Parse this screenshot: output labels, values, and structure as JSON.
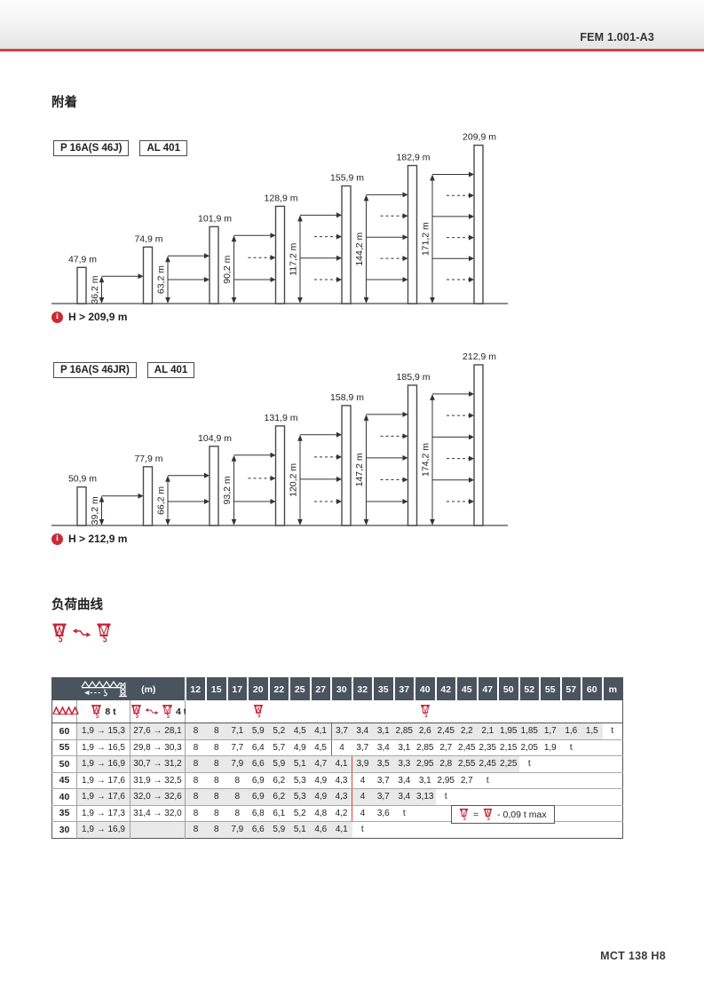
{
  "page": {
    "banner_text": "FEM 1.001-A3",
    "footer_text": "MCT 138 H8",
    "anchorage_title": "附着",
    "load_curve_title": "负荷曲线",
    "colors": {
      "accent_red": "#cd4248",
      "icon_red": "#c32033",
      "table_header_bg": "#4a545e",
      "row_shade_gray": "#e9e9e9",
      "red_separator": "#cf4540"
    }
  },
  "diagrams": [
    {
      "model_label": "P 16A(S 46J)",
      "mast_label": "AL 401",
      "info": "H > 209,9 m",
      "masts": [
        {
          "height": 47.9,
          "label": "47,9 m"
        },
        {
          "height": 74.9,
          "label": "74,9 m",
          "tie": 36.2,
          "tie_label": "36,2 m",
          "arrows": "S"
        },
        {
          "height": 101.9,
          "label": "101,9 m",
          "tie": 63.2,
          "tie_label": "63,2 m",
          "arrows": "SS"
        },
        {
          "height": 128.9,
          "label": "128,9 m",
          "tie": 90.2,
          "tie_label": "90,2 m",
          "arrows": "SDS"
        },
        {
          "height": 155.9,
          "label": "155,9 m",
          "tie": 117.2,
          "tie_label": "117,2 m",
          "arrows": "SDSD"
        },
        {
          "height": 182.9,
          "label": "182,9 m",
          "tie": 144.2,
          "tie_label": "144,2 m",
          "arrows": "SDSDS"
        },
        {
          "height": 209.9,
          "label": "209,9 m",
          "tie": 171.2,
          "tie_label": "171,2 m",
          "arrows": "SDSDSD"
        }
      ]
    },
    {
      "model_label": "P 16A(S 46JR)",
      "mast_label": "AL 401",
      "info": "H > 212,9 m",
      "masts": [
        {
          "height": 50.9,
          "label": "50,9 m"
        },
        {
          "height": 77.9,
          "label": "77,9 m",
          "tie": 39.2,
          "tie_label": "39,2 m",
          "arrows": "S"
        },
        {
          "height": 104.9,
          "label": "104,9 m",
          "tie": 66.2,
          "tie_label": "66,2 m",
          "arrows": "SS"
        },
        {
          "height": 131.9,
          "label": "131,9 m",
          "tie": 93.2,
          "tie_label": "93,2 m",
          "arrows": "SDS"
        },
        {
          "height": 158.9,
          "label": "158,9 m",
          "tie": 120.2,
          "tie_label": "120,2 m",
          "arrows": "SDSD"
        },
        {
          "height": 185.9,
          "label": "185,9 m",
          "tie": 147.2,
          "tie_label": "147,2 m",
          "arrows": "SDSDS"
        },
        {
          "height": 212.9,
          "label": "212,9 m",
          "tie": 174.2,
          "tie_label": "174,2 m",
          "arrows": "SDSDSD"
        }
      ]
    }
  ],
  "load_table": {
    "jib_unit": "(m)",
    "radius_header": [
      "12",
      "15",
      "17",
      "20",
      "22",
      "25",
      "27",
      "30",
      "32",
      "35",
      "37",
      "40",
      "42",
      "45",
      "47",
      "50",
      "52",
      "55",
      "57",
      "60"
    ],
    "unit_header": "m",
    "hook8_label": "8 t",
    "hook4_label": "4 t",
    "unit_t": "t",
    "note_eq": "=",
    "note_text": "- 0,09 t max",
    "rows": [
      {
        "jib": "60",
        "r8": "1,9 → 15,3",
        "r4": "27,6 → 28,1",
        "values": [
          "8",
          "8",
          "7,1",
          "5,9",
          "5,2",
          "4,5",
          "4,1",
          "3,7",
          "3,4",
          "3,1",
          "2,85",
          "2,6",
          "2,45",
          "2,2",
          "2,1",
          "1,95",
          "1,85",
          "1,7",
          "1,6",
          "1,5"
        ],
        "red_after": 6,
        "shaded": true
      },
      {
        "jib": "55",
        "r8": "1,9 → 16,5",
        "r4": "29,8 → 30,3",
        "values": [
          "8",
          "8",
          "7,7",
          "6,4",
          "5,7",
          "4,9",
          "4,5",
          "4",
          "3,7",
          "3,4",
          "3,1",
          "2,85",
          "2,7",
          "2,45",
          "2,35",
          "2,15",
          "2,05",
          "1,9"
        ],
        "red_after": 6,
        "shaded": false
      },
      {
        "jib": "50",
        "r8": "1,9 → 16,9",
        "r4": "30,7 → 31,2",
        "values": [
          "8",
          "8",
          "7,9",
          "6,6",
          "5,9",
          "5,1",
          "4,7",
          "4,1",
          "3,9",
          "3,5",
          "3,3",
          "2,95",
          "2,8",
          "2,55",
          "2,45",
          "2,25"
        ],
        "red_after": 7,
        "shaded": true
      },
      {
        "jib": "45",
        "r8": "1,9 → 17,6",
        "r4": "31,9 → 32,5",
        "values": [
          "8",
          "8",
          "8",
          "6,9",
          "6,2",
          "5,3",
          "4,9",
          "4,3",
          "4",
          "3,7",
          "3,4",
          "3,1",
          "2,95",
          "2,7"
        ],
        "red_after": 7,
        "shaded": false
      },
      {
        "jib": "40",
        "r8": "1,9 → 17,6",
        "r4": "32,0 → 32,6",
        "values": [
          "8",
          "8",
          "8",
          "6,9",
          "6,2",
          "5,3",
          "4,9",
          "4,3",
          "4",
          "3,7",
          "3,4",
          "3,13"
        ],
        "red_after": 7,
        "shaded": true
      },
      {
        "jib": "35",
        "r8": "1,9 → 17,3",
        "r4": "31,4 → 32,0",
        "values": [
          "8",
          "8",
          "8",
          "6,8",
          "6,1",
          "5,2",
          "4,8",
          "4,2",
          "4",
          "3,6"
        ],
        "red_after": 7,
        "shaded": false
      },
      {
        "jib": "30",
        "r8": "1,9 → 16,9",
        "r4": "",
        "values": [
          "8",
          "8",
          "7,9",
          "6,6",
          "5,9",
          "5,1",
          "4,6",
          "4,1"
        ],
        "red_after": null,
        "shaded": true
      }
    ]
  }
}
